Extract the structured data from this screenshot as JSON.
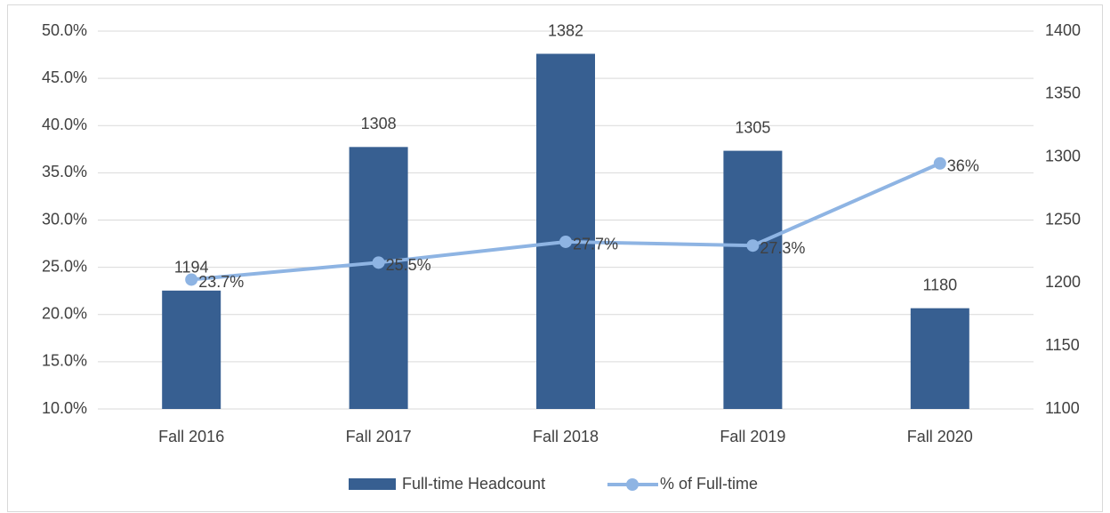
{
  "chart_data": {
    "type": "bar-line",
    "categories": [
      "Fall 2016",
      "Fall 2017",
      "Fall 2018",
      "Fall 2019",
      "Fall 2020"
    ],
    "series": [
      {
        "name": "Full-time Headcount",
        "type": "bar",
        "axis": "y2",
        "color": "#375f91",
        "values": [
          1194,
          1308,
          1382,
          1305,
          1180
        ]
      },
      {
        "name": "% of Full-time",
        "type": "line",
        "axis": "y",
        "color": "#8eb4e3",
        "values": [
          23.7,
          25.5,
          27.7,
          27.3,
          36
        ],
        "value_labels": [
          "23.7%",
          "25.5%",
          "27.7%",
          "27.3%",
          "36%"
        ]
      }
    ],
    "ylim": [
      10,
      50
    ],
    "yticks": [
      {
        "value": 10,
        "label": "10.0%"
      },
      {
        "value": 15,
        "label": "15.0%"
      },
      {
        "value": 20,
        "label": "20.0%"
      },
      {
        "value": 25,
        "label": "25.0%"
      },
      {
        "value": 30,
        "label": "30.0%"
      },
      {
        "value": 35,
        "label": "35.0%"
      },
      {
        "value": 40,
        "label": "40.0%"
      },
      {
        "value": 45,
        "label": "45.0%"
      },
      {
        "value": 50,
        "label": "50.0%"
      }
    ],
    "y2lim": [
      1100,
      1400
    ],
    "y2ticks": [
      1100,
      1150,
      1200,
      1250,
      1300,
      1350,
      1400
    ],
    "grid": true,
    "legend": "bottom"
  }
}
